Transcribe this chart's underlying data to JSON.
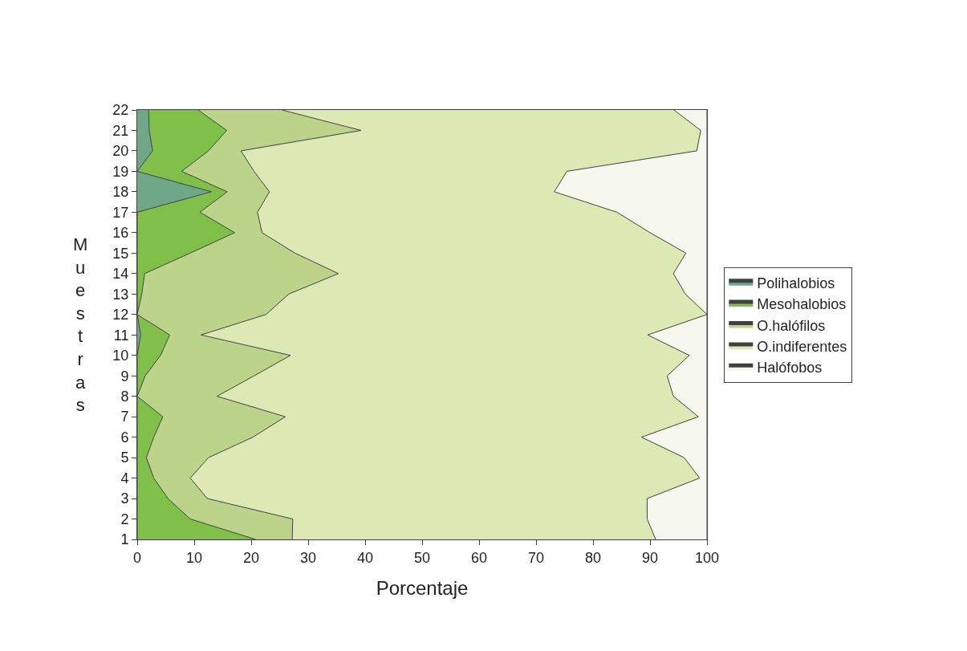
{
  "chart_data": {
    "type": "area",
    "orientation": "horizontal",
    "stacked": true,
    "xlabel": "Porcentaje",
    "ylabel": "Muestras",
    "categories": [
      "22",
      "21",
      "20",
      "19",
      "18",
      "17",
      "16",
      "15",
      "14",
      "13",
      "12",
      "11",
      "10",
      "9",
      "8",
      "7",
      "6",
      "5",
      "4",
      "3",
      "2",
      "1"
    ],
    "xlim": [
      0,
      100
    ],
    "xticks": [
      0,
      10,
      20,
      30,
      40,
      50,
      60,
      70,
      80,
      90,
      100
    ],
    "legend": "right",
    "series": [
      {
        "name": "Polihalobios",
        "color": "#6fa888",
        "values": [
          2,
          2.1,
          2.7,
          0,
          13,
          0,
          0,
          0,
          0,
          0,
          0,
          0.6,
          0,
          0,
          0,
          0,
          0,
          0,
          0,
          0,
          0,
          0
        ]
      },
      {
        "name": "Mesohalobios",
        "color": "#7fbf4a",
        "values": [
          8.7,
          13.6,
          9.8,
          7.8,
          2.8,
          11,
          17.1,
          9.3,
          1.3,
          0.8,
          0,
          5.1,
          4.1,
          1.4,
          0,
          4.5,
          2.9,
          1.6,
          2.9,
          5.4,
          9.3,
          20.8
        ]
      },
      {
        "name": "O.halófilos",
        "color": "#bcd48a",
        "values": [
          14.7,
          23.6,
          5.7,
          12.7,
          7.4,
          10.1,
          4.8,
          18.4,
          34,
          25.8,
          22.6,
          5.5,
          22.8,
          19.1,
          14,
          21.5,
          17.4,
          10.9,
          6.4,
          6.9,
          18,
          6.4
        ]
      },
      {
        "name": "O.indiferentes",
        "color": "#dde9b5",
        "values": [
          68.8,
          59.6,
          80,
          54.9,
          50,
          63.1,
          68.1,
          68.6,
          58.8,
          69.6,
          77.4,
          78.4,
          70,
          72.5,
          80.1,
          72.5,
          68.2,
          83.5,
          89.4,
          77.2,
          62.2,
          63.8
        ]
      },
      {
        "name": "Halófobos",
        "color": "#f6f8ee",
        "values": [
          5.8,
          1.1,
          1.8,
          24.6,
          26.8,
          15.8,
          10,
          3.7,
          5.9,
          3.8,
          0,
          10.4,
          3.1,
          7,
          5.9,
          1.5,
          11.5,
          4,
          1.3,
          10.5,
          10.5,
          9
        ]
      }
    ]
  }
}
